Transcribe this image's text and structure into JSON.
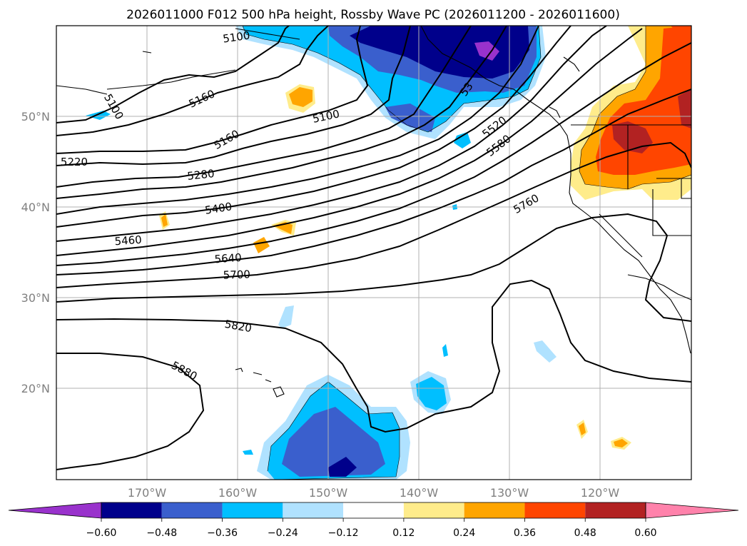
{
  "title": "2026011000 F012 500 hPa height, Rossby Wave PC (2026011200 - 2026011600)",
  "lat_labels": [
    "50°N",
    "40°N",
    "30°N",
    "20°N"
  ],
  "lon_labels": [
    "170°W",
    "160°W",
    "150°W",
    "140°W",
    "130°W",
    "120°W"
  ],
  "colorbar": {
    "ticks": [
      "−0.60",
      "−0.48",
      "−0.36",
      "−0.24",
      "−0.12",
      "0.12",
      "0.24",
      "0.36",
      "0.48",
      "0.60"
    ],
    "colors": [
      "#9932cc",
      "#00008b",
      "#3a5fcd",
      "#00bfff",
      "#b0e2ff",
      "#ffffff",
      "#ffec8b",
      "#ffa500",
      "#ff4500",
      "#b22222",
      "#ff82ab"
    ]
  },
  "contour_labels": [
    "5100",
    "5160",
    "5100",
    "5160",
    "5220",
    "5280",
    "5400",
    "5460",
    "5640",
    "5700",
    "5820",
    "5880",
    "5520",
    "5580",
    "5760",
    "5100",
    "53"
  ]
}
